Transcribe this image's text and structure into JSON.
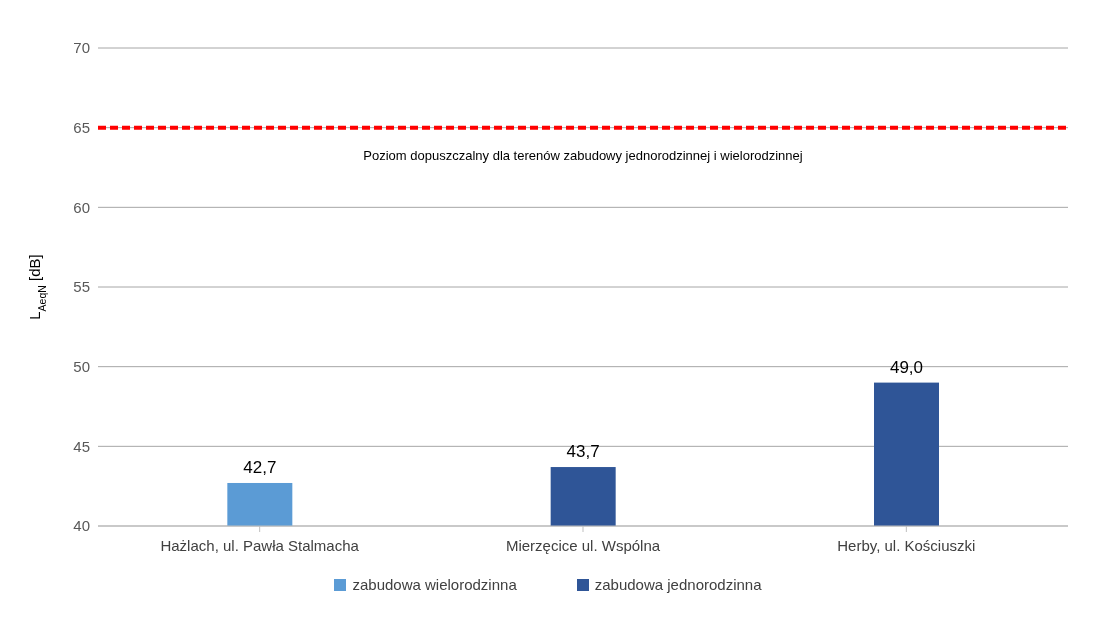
{
  "chart_data": {
    "type": "bar",
    "stacked": true,
    "ylabel": "L$_{AeqN}$ [dB]",
    "categories": [
      "Hażlach, ul. Pawła Stalmacha",
      "Mierzęcice ul. Wspólna",
      "Herby, ul. Kościuszki"
    ],
    "series": [
      {
        "name": "zabudowa wielorodzinna",
        "color": "#5b9bd5",
        "values": [
          42.7,
          null,
          null
        ],
        "value_labels": [
          "42,7",
          null,
          null
        ]
      },
      {
        "name": "zabudowa jednorodzinna",
        "color": "#2f5597",
        "values": [
          null,
          43.7,
          49.0
        ],
        "value_labels": [
          null,
          "43,7",
          "49,0"
        ]
      }
    ],
    "ylim": [
      40,
      70
    ],
    "yticks": [
      40,
      45,
      50,
      55,
      60,
      65,
      70
    ],
    "grid": "y",
    "legend": "bottom",
    "ref_lines": [
      {
        "axis": "y",
        "value": 65,
        "label": "Poziom dopuszczalny dla terenów zabudowy jednorodzinnej i wielorodzinnej",
        "color": "#ff0000",
        "line_style": "dashed"
      }
    ]
  }
}
